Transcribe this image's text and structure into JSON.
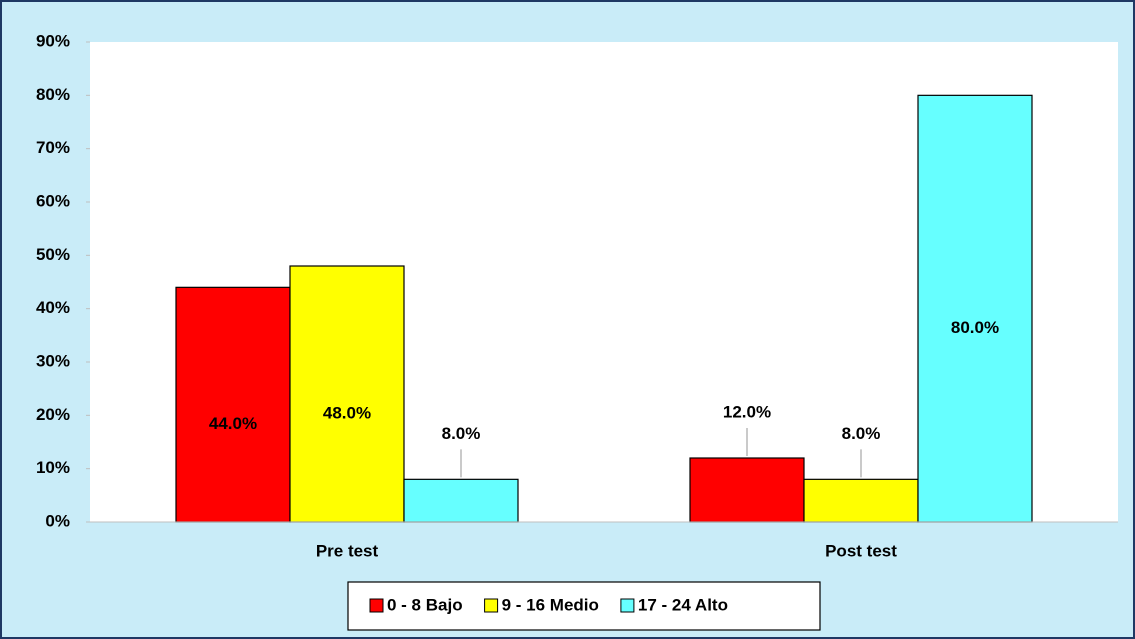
{
  "chart_data": {
    "type": "bar",
    "categories": [
      "Pre test",
      "Post test"
    ],
    "series": [
      {
        "name": "0 - 8 Bajo",
        "color": "#ff0000",
        "values": [
          44,
          12
        ],
        "value_labels": [
          "44.0%",
          "12.0%"
        ]
      },
      {
        "name": "9 - 16 Medio",
        "color": "#ffff00",
        "values": [
          48,
          8
        ],
        "value_labels": [
          "48.0%",
          "8.0%"
        ]
      },
      {
        "name": "17 - 24 Alto",
        "color": "#66ffff",
        "values": [
          8,
          80
        ],
        "value_labels": [
          "8.0%",
          "80.0%"
        ]
      }
    ],
    "ylim": [
      0,
      90
    ],
    "yticks": [
      {
        "value": 0,
        "label": "0%"
      },
      {
        "value": 10,
        "label": "10%"
      },
      {
        "value": 20,
        "label": "20%"
      },
      {
        "value": 30,
        "label": "30%"
      },
      {
        "value": 40,
        "label": "40%"
      },
      {
        "value": 50,
        "label": "50%"
      },
      {
        "value": 60,
        "label": "60%"
      },
      {
        "value": 70,
        "label": "70%"
      },
      {
        "value": 80,
        "label": "80%"
      },
      {
        "value": 90,
        "label": "90%"
      }
    ],
    "grid": false,
    "legend": "bottom"
  }
}
